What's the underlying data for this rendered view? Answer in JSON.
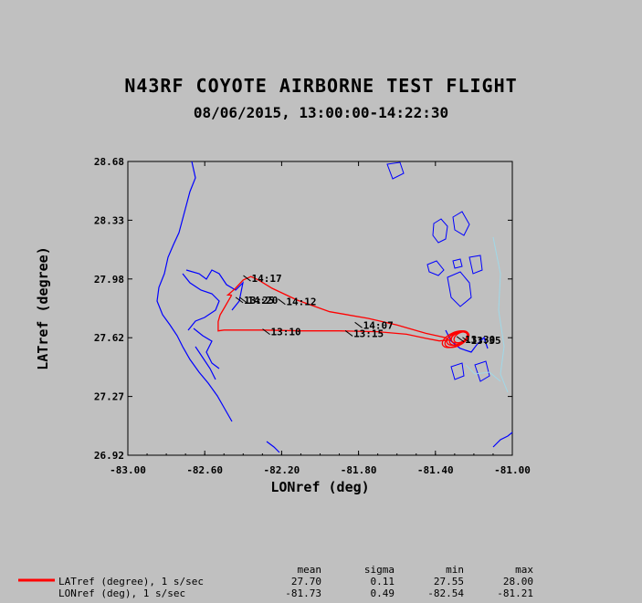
{
  "chart_data": {
    "type": "line",
    "title": "N43RF COYOTE AIRBORNE TEST FLIGHT",
    "subtitle": "08/06/2015, 13:00:00-14:22:30",
    "xlabel": "LONref (deg)",
    "ylabel": "LATref (degree)",
    "xlim": [
      -83.0,
      -81.0
    ],
    "ylim": [
      26.92,
      28.68
    ],
    "xticks": [
      "-83.00",
      "-82.60",
      "-82.20",
      "-81.80",
      "-81.40",
      "-81.00"
    ],
    "yticks": [
      "26.92",
      "27.27",
      "27.62",
      "27.98",
      "28.33",
      "28.68"
    ],
    "grid": false,
    "coastline_color": "#0000ff",
    "water_color": "#a0d8e8",
    "track_color": "#ff0000",
    "series": [
      {
        "name": "LATref (degree), 1 s/sec",
        "lon": [
          -82.46,
          -82.48,
          -82.5,
          -82.52,
          -82.53,
          -82.53,
          -82.53,
          -82.5,
          -82.44,
          -82.3,
          -82.1,
          -81.9,
          -81.7,
          -81.55,
          -81.45,
          -81.38,
          -81.33,
          -81.35,
          -81.45,
          -81.6,
          -81.75,
          -81.95,
          -82.12,
          -82.25,
          -82.32,
          -82.36,
          -82.4,
          -82.44,
          -82.48,
          -82.46
        ],
        "lat": [
          27.88,
          27.84,
          27.8,
          27.76,
          27.72,
          27.69,
          27.665,
          27.67,
          27.67,
          27.67,
          27.665,
          27.665,
          27.66,
          27.645,
          27.62,
          27.605,
          27.61,
          27.625,
          27.65,
          27.7,
          27.74,
          27.78,
          27.85,
          27.92,
          27.97,
          27.99,
          27.97,
          27.92,
          27.88,
          27.88
        ]
      }
    ],
    "orbits": {
      "lon": -81.28,
      "lat": 27.625,
      "rx": 0.07,
      "ry": 0.04
    },
    "time_labels": [
      {
        "text": "14:17",
        "lon": -82.38,
        "lat": 27.98
      },
      {
        "text": "14:12",
        "lon": -82.2,
        "lat": 27.84
      },
      {
        "text": "14:07",
        "lon": -81.8,
        "lat": 27.7
      },
      {
        "text": "13:10",
        "lon": -82.28,
        "lat": 27.66
      },
      {
        "text": "13:15",
        "lon": -81.85,
        "lat": 27.65
      },
      {
        "text": "13:25",
        "lon": -82.42,
        "lat": 27.85
      },
      {
        "text": "14:20",
        "lon": -82.4,
        "lat": 27.85
      },
      {
        "text": "13:30",
        "lon": -81.27,
        "lat": 27.615
      },
      {
        "text": "13:35",
        "lon": -81.24,
        "lat": 27.61
      }
    ],
    "stats": {
      "headers": [
        "mean",
        "sigma",
        "min",
        "max"
      ],
      "rows": [
        {
          "label": "LATref (degree), 1 s/sec",
          "mean": "27.70",
          "sigma": "0.11",
          "min": "27.55",
          "max": "28.00"
        },
        {
          "label": "LONref (deg), 1 s/sec",
          "mean": "-81.73",
          "sigma": "0.49",
          "min": "-82.54",
          "max": "-81.21"
        }
      ]
    }
  }
}
